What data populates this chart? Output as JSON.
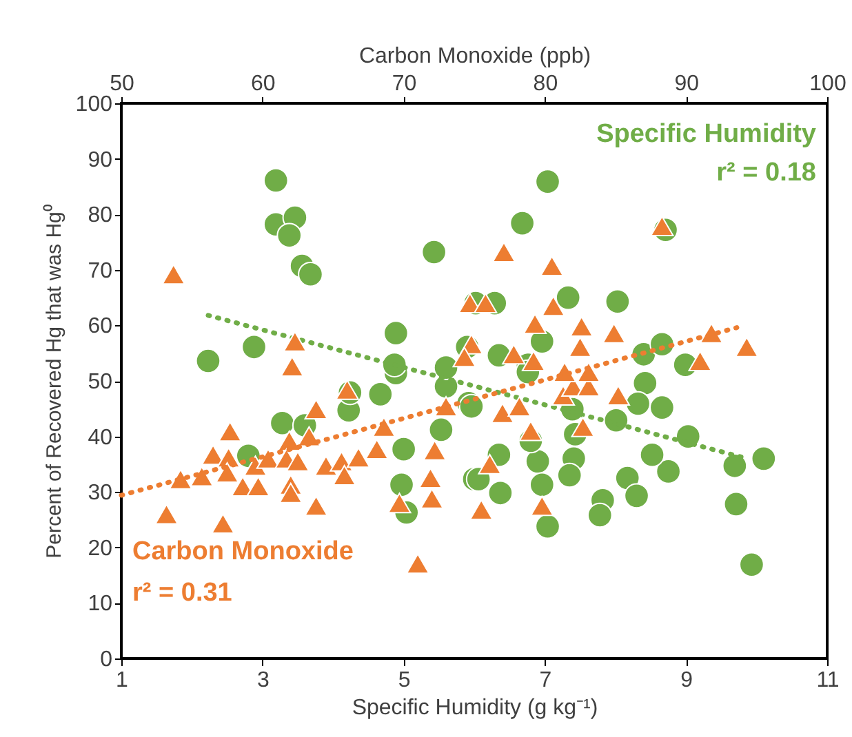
{
  "chart_data": {
    "type": "scatter",
    "xlabel": "Specific Humidity (g kg⁻¹)",
    "x2label": "Carbon Monoxide (ppb)",
    "ylabel": "Percent of Recovered Hg that was Hg⁰",
    "xlim": [
      1,
      11
    ],
    "xticks": [
      1,
      3,
      5,
      7,
      9,
      11
    ],
    "x2lim": [
      50,
      100
    ],
    "x2ticks": [
      50,
      60,
      70,
      80,
      90,
      100
    ],
    "ylim": [
      0,
      100
    ],
    "yticks": [
      0,
      10,
      20,
      30,
      40,
      50,
      60,
      70,
      80,
      90,
      100
    ],
    "grid": false,
    "annotations": [
      "Specific Humidity",
      "r² = 0.18",
      "Carbon Monoxide",
      "r² = 0.31"
    ],
    "series": [
      {
        "color": "#70ad47",
        "marker": "circle",
        "x": [
          2.8,
          3.28,
          3.6,
          4.22,
          4.67,
          4.24,
          4.89,
          5.6,
          5.92,
          5.53,
          5.0,
          4.97,
          5.04,
          6.0,
          3.19,
          3.19,
          3.46,
          3.38,
          3.56,
          3.68,
          5.43,
          4.89,
          4.87,
          2.88,
          2.23,
          5.6,
          5.9,
          7.04,
          6.68,
          8.71,
          7.33,
          8.03,
          6.29,
          6.02,
          6.96,
          6.35,
          8.4,
          8.66,
          8.99,
          6.76,
          8.42,
          8.32,
          8.66,
          8.01,
          9.03,
          10.1,
          9.69,
          9.71,
          9.93,
          8.75,
          8.52,
          8.17,
          8.3,
          7.82,
          7.78,
          7.41,
          7.35,
          7.43,
          7.39,
          6.9,
          6.96,
          7.04,
          6.35,
          6.37,
          6.06,
          6.8,
          5.96,
          6.76
        ],
        "values": [
          36.5,
          42.4,
          42,
          44.7,
          47.6,
          47.9,
          51.4,
          49,
          46,
          41.2,
          37.7,
          31.3,
          26.3,
          32.3,
          86.1,
          78.2,
          79.4,
          76.2,
          70.7,
          69.2,
          73.2,
          58.6,
          52.9,
          56.1,
          53.6,
          52.4,
          56.1,
          85.9,
          78.4,
          77.2,
          65,
          64.3,
          64,
          64,
          57.1,
          54.6,
          54.8,
          56.6,
          52.9,
          52.9,
          49.6,
          45.9,
          45.2,
          42.9,
          40,
          36,
          34.7,
          27.8,
          16.9,
          33.7,
          36.7,
          32.5,
          29.3,
          28.5,
          25.8,
          36,
          33,
          40.4,
          44.9,
          35.5,
          31.3,
          23.8,
          36.7,
          29.8,
          32.3,
          39.2,
          45.4,
          51.6
        ]
      },
      {
        "axis": "x2",
        "color": "#ed7d31",
        "marker": "triangle",
        "x": [
          53.7,
          62.3,
          62.1,
          74.7,
          74.8,
          74.3,
          88.3,
          77.1,
          80.5,
          80.6,
          75.8,
          79.3,
          82.6,
          84.9,
          91.8,
          94.3,
          77.8,
          82.5,
          79.2,
          91.0,
          66,
          63.8,
          57.7,
          63.3,
          61.9,
          56.5,
          57.6,
          54.2,
          55.7,
          57.5,
          59.5,
          60.4,
          61.7,
          62.5,
          58.6,
          59.7,
          62,
          62,
          63.8,
          64.5,
          65.6,
          65.8,
          66.8,
          68.1,
          68.6,
          73,
          72.2,
          71.9,
          72,
          69.7,
          53.2,
          57.2,
          71,
          76.1,
          75.5,
          79.8,
          79,
          82.7,
          77,
          78.2,
          81.3,
          82,
          83.1,
          85.2,
          81.4,
          83.1
        ],
        "values": [
          69.2,
          57.1,
          52.6,
          64,
          56.6,
          54.3,
          77.9,
          73.2,
          70.7,
          63.5,
          64,
          60.3,
          59.8,
          58.6,
          58.6,
          56.1,
          54.8,
          56.1,
          53.6,
          53.6,
          48.4,
          44.9,
          40.9,
          40,
          39.2,
          36.7,
          36.2,
          32.3,
          32.8,
          33.5,
          34.7,
          36,
          36,
          35.5,
          31,
          31,
          31.3,
          29.8,
          27.5,
          34.7,
          35.5,
          33,
          36.2,
          37.7,
          41.7,
          45.4,
          37.5,
          32.5,
          28.8,
          28,
          26,
          24.3,
          17.1,
          35,
          26.8,
          27.5,
          41,
          41.7,
          44.2,
          45.4,
          47.4,
          49,
          49,
          47.4,
          51.6,
          51.6
        ]
      },
      {
        "type": "line",
        "color": "#70ad47",
        "line_style": "dotted",
        "x": [
          2.23,
          9.87
        ],
        "values": [
          61.8,
          36.0
        ]
      },
      {
        "type": "line",
        "axis": "x2",
        "color": "#ed7d31",
        "line_style": "dotted",
        "x": [
          50,
          93.6
        ],
        "values": [
          29.4,
          59.6
        ]
      }
    ]
  }
}
